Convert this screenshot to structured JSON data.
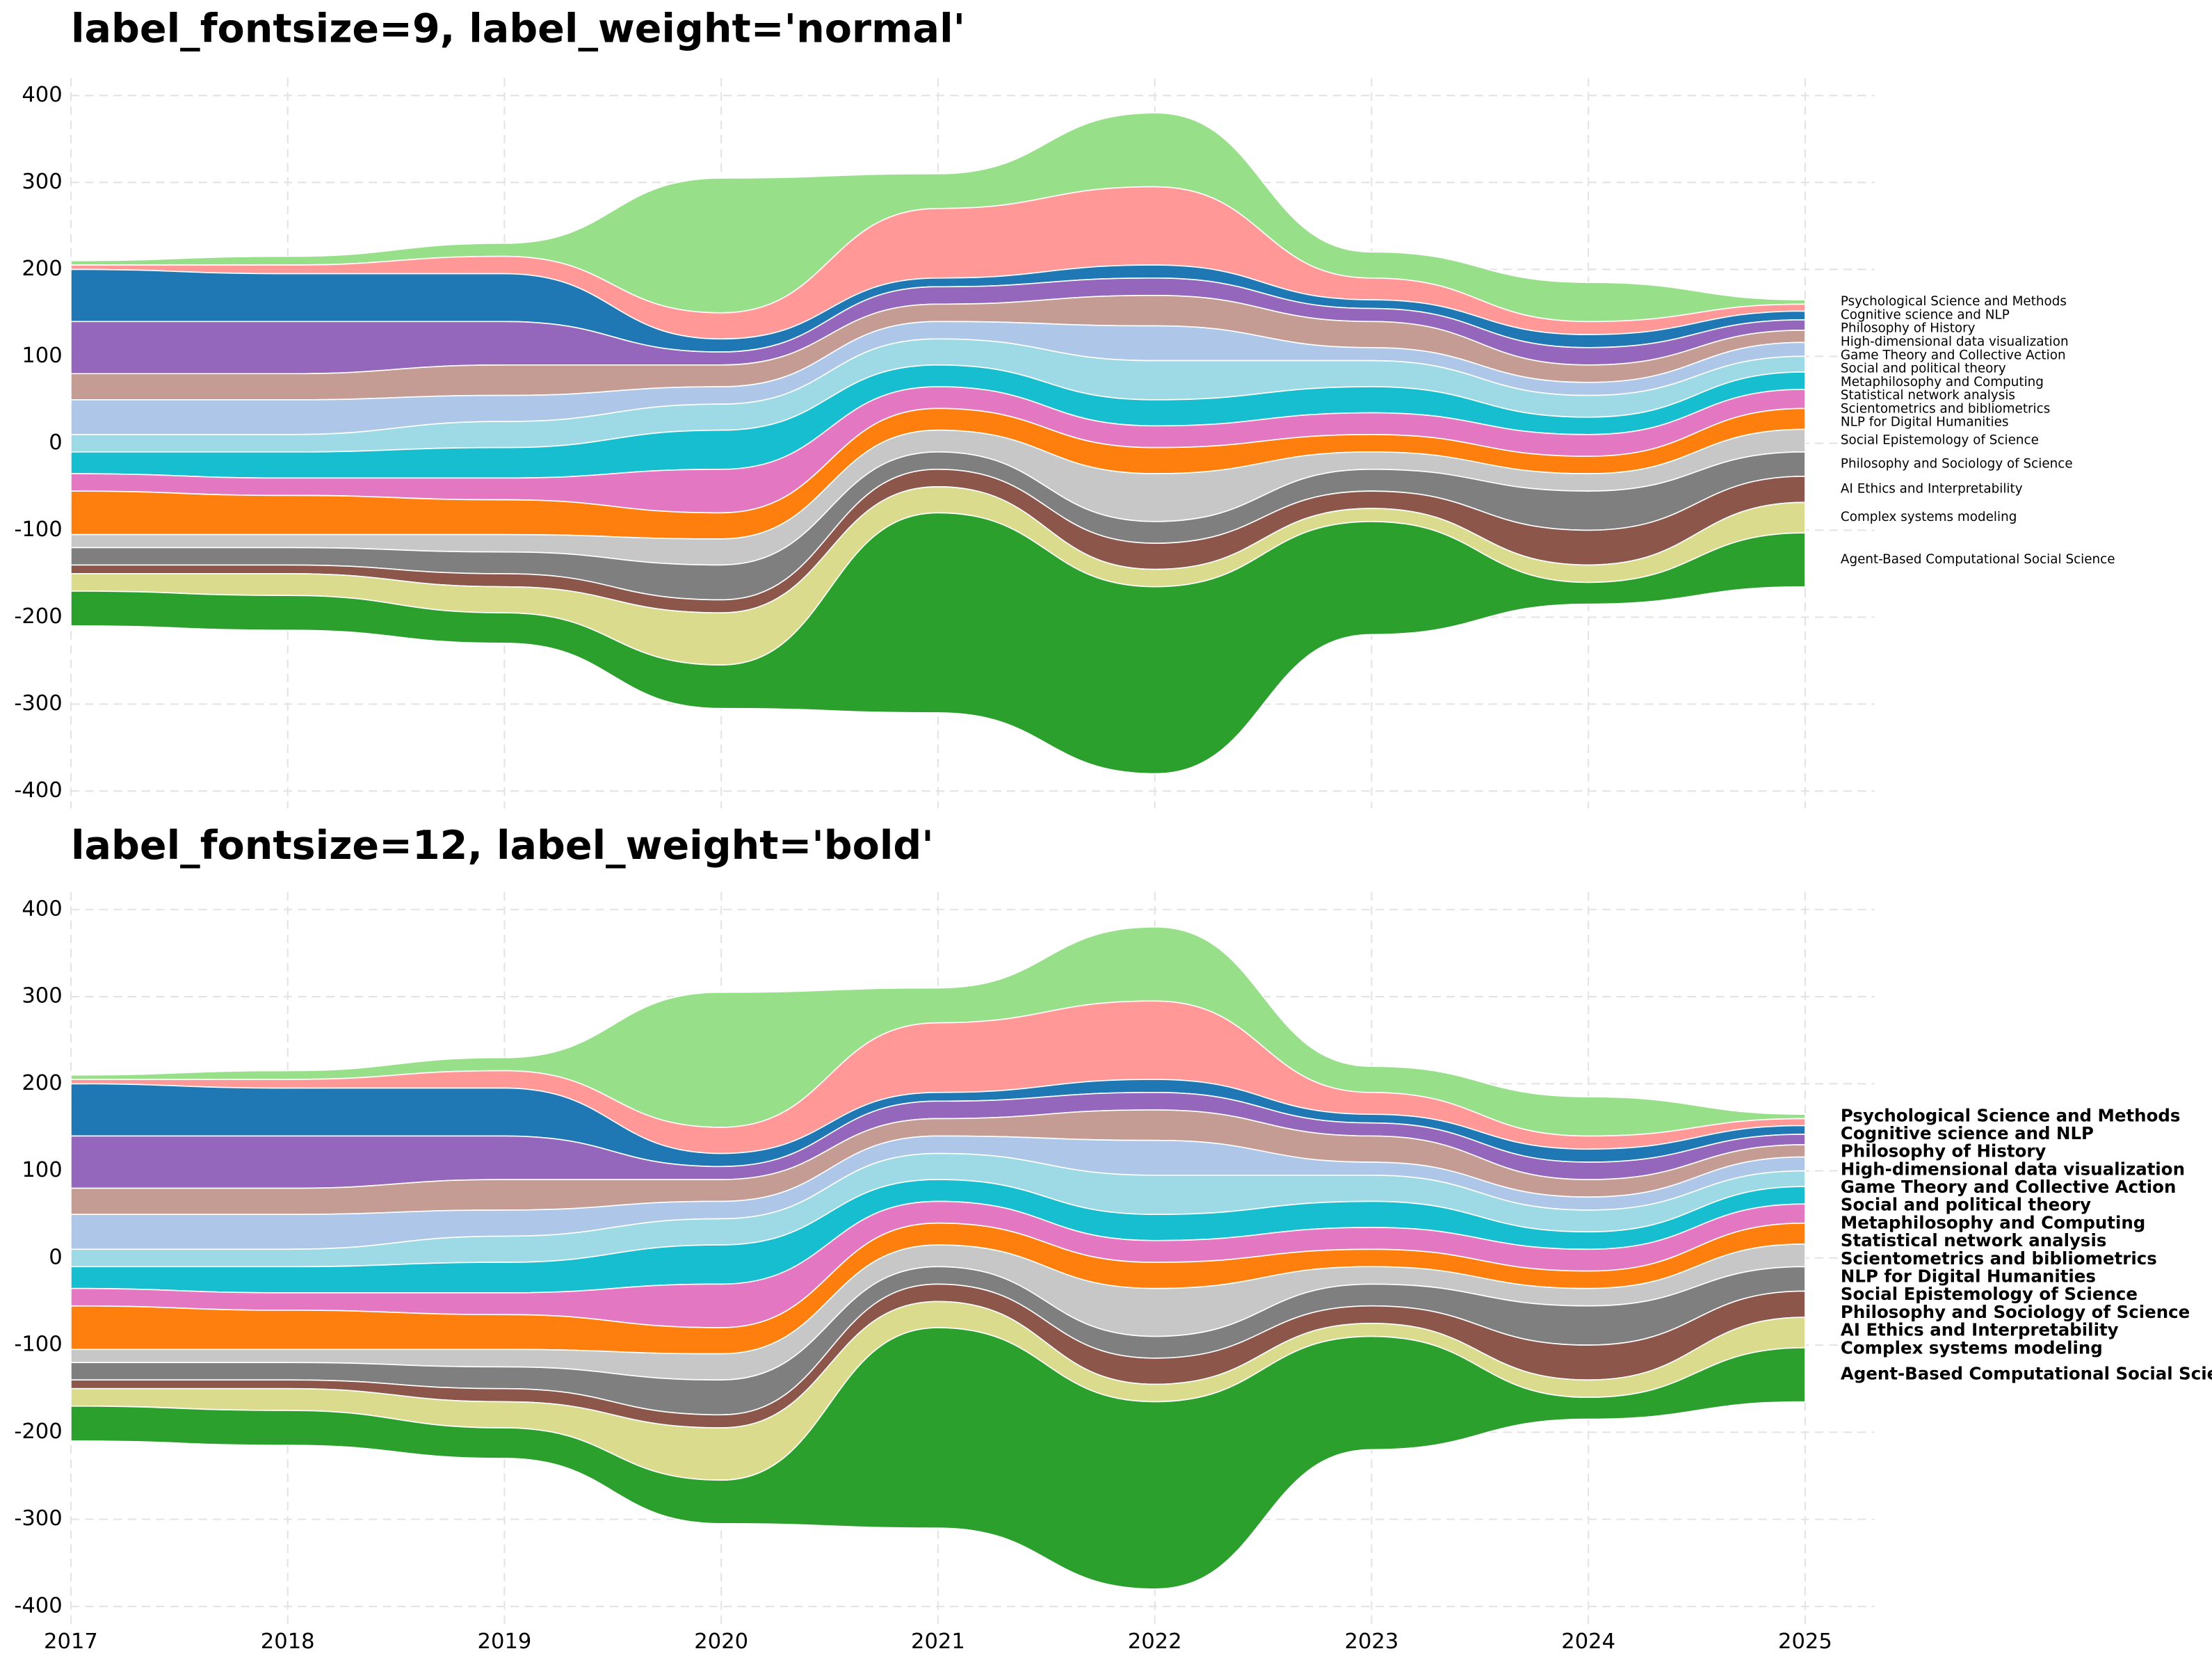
{
  "chart_data": [
    {
      "type": "stream",
      "title": "label_fontsize=9, label_weight='normal'",
      "label_size": 9,
      "label_weight": "normal",
      "x": [
        2017,
        2018,
        2019,
        2020,
        2021,
        2022,
        2023,
        2024,
        2025
      ],
      "xlim": [
        2017,
        2025.32
      ],
      "xticks": [
        2017,
        2018,
        2019,
        2020,
        2021,
        2022,
        2023,
        2024,
        2025
      ],
      "ylim": [
        -420,
        420
      ],
      "yticks": [
        -400,
        -300,
        -200,
        -100,
        0,
        100,
        200,
        300,
        400
      ],
      "grid": true,
      "series": [
        {
          "name": "Psychological Science and Methods",
          "color": "#98df8a",
          "values": [
            5,
            10,
            15,
            155,
            40,
            85,
            30,
            45,
            5
          ]
        },
        {
          "name": "Cognitive science and NLP",
          "color": "#ff9896",
          "values": [
            5,
            10,
            20,
            30,
            80,
            90,
            25,
            15,
            8
          ]
        },
        {
          "name": "Philosophy of History",
          "color": "#1f77b4",
          "values": [
            60,
            55,
            55,
            15,
            10,
            15,
            10,
            15,
            10
          ]
        },
        {
          "name": "High-dimensional data visualization",
          "color": "#9467bd",
          "values": [
            60,
            60,
            50,
            15,
            20,
            20,
            15,
            20,
            12
          ]
        },
        {
          "name": "Game Theory and Collective Action",
          "color": "#c49c94",
          "values": [
            30,
            30,
            35,
            25,
            20,
            35,
            30,
            20,
            14
          ]
        },
        {
          "name": "Social and political theory",
          "color": "#aec7e8",
          "values": [
            40,
            40,
            30,
            20,
            20,
            40,
            15,
            15,
            16
          ]
        },
        {
          "name": "Metaphilosophy and Computing",
          "color": "#9edae5",
          "values": [
            20,
            20,
            30,
            30,
            30,
            45,
            30,
            25,
            18
          ]
        },
        {
          "name": "Statistical network analysis",
          "color": "#17becf",
          "values": [
            25,
            30,
            35,
            45,
            25,
            30,
            30,
            20,
            20
          ]
        },
        {
          "name": "Scientometrics and bibliometrics",
          "color": "#e377c2",
          "values": [
            20,
            20,
            25,
            50,
            25,
            25,
            25,
            25,
            22
          ]
        },
        {
          "name": "NLP for Digital Humanities",
          "color": "#ff7f0e",
          "values": [
            50,
            45,
            40,
            30,
            25,
            30,
            20,
            20,
            24
          ]
        },
        {
          "name": "Social Epistemology of Science",
          "color": "#c7c7c7",
          "values": [
            15,
            15,
            20,
            30,
            25,
            55,
            20,
            20,
            26
          ]
        },
        {
          "name": "Philosophy and Sociology of Science",
          "color": "#7f7f7f",
          "values": [
            20,
            20,
            25,
            40,
            20,
            25,
            25,
            45,
            28
          ]
        },
        {
          "name": "AI Ethics and Interpretability",
          "color": "#8c564b",
          "values": [
            10,
            10,
            15,
            15,
            20,
            30,
            20,
            40,
            30
          ]
        },
        {
          "name": "Complex systems modeling",
          "color": "#dbdb8d",
          "values": [
            20,
            25,
            30,
            60,
            30,
            20,
            15,
            20,
            35
          ]
        },
        {
          "name": "Agent-Based Computational Social Science",
          "color": "#2ca02c",
          "values": [
            40,
            40,
            35,
            50,
            230,
            215,
            130,
            25,
            62
          ]
        }
      ]
    },
    {
      "type": "stream",
      "title": "label_fontsize=12, label_weight='bold'",
      "label_size": 12,
      "label_weight": "bold",
      "x": [
        2017,
        2018,
        2019,
        2020,
        2021,
        2022,
        2023,
        2024,
        2025
      ],
      "xlim": [
        2017,
        2025.32
      ],
      "xticks": [
        2017,
        2018,
        2019,
        2020,
        2021,
        2022,
        2023,
        2024,
        2025
      ],
      "ylim": [
        -420,
        420
      ],
      "yticks": [
        -400,
        -300,
        -200,
        -100,
        0,
        100,
        200,
        300,
        400
      ],
      "grid": true,
      "series": [
        {
          "name": "Psychological Science and Methods",
          "color": "#98df8a",
          "values": [
            5,
            10,
            15,
            155,
            40,
            85,
            30,
            45,
            5
          ]
        },
        {
          "name": "Cognitive science and NLP",
          "color": "#ff9896",
          "values": [
            5,
            10,
            20,
            30,
            80,
            90,
            25,
            15,
            8
          ]
        },
        {
          "name": "Philosophy of History",
          "color": "#1f77b4",
          "values": [
            60,
            55,
            55,
            15,
            10,
            15,
            10,
            15,
            10
          ]
        },
        {
          "name": "High-dimensional data visualization",
          "color": "#9467bd",
          "values": [
            60,
            60,
            50,
            15,
            20,
            20,
            15,
            20,
            12
          ]
        },
        {
          "name": "Game Theory and Collective Action",
          "color": "#c49c94",
          "values": [
            30,
            30,
            35,
            25,
            20,
            35,
            30,
            20,
            14
          ]
        },
        {
          "name": "Social and political theory",
          "color": "#aec7e8",
          "values": [
            40,
            40,
            30,
            20,
            20,
            40,
            15,
            15,
            16
          ]
        },
        {
          "name": "Metaphilosophy and Computing",
          "color": "#9edae5",
          "values": [
            20,
            20,
            30,
            30,
            30,
            45,
            30,
            25,
            18
          ]
        },
        {
          "name": "Statistical network analysis",
          "color": "#17becf",
          "values": [
            25,
            30,
            35,
            45,
            25,
            30,
            30,
            20,
            20
          ]
        },
        {
          "name": "Scientometrics and bibliometrics",
          "color": "#e377c2",
          "values": [
            20,
            20,
            25,
            50,
            25,
            25,
            25,
            25,
            22
          ]
        },
        {
          "name": "NLP for Digital Humanities",
          "color": "#ff7f0e",
          "values": [
            50,
            45,
            40,
            30,
            25,
            30,
            20,
            20,
            24
          ]
        },
        {
          "name": "Social Epistemology of Science",
          "color": "#c7c7c7",
          "values": [
            15,
            15,
            20,
            30,
            25,
            55,
            20,
            20,
            26
          ]
        },
        {
          "name": "Philosophy and Sociology of Science",
          "color": "#7f7f7f",
          "values": [
            20,
            20,
            25,
            40,
            20,
            25,
            25,
            45,
            28
          ]
        },
        {
          "name": "AI Ethics and Interpretability",
          "color": "#8c564b",
          "values": [
            10,
            10,
            15,
            15,
            20,
            30,
            20,
            40,
            30
          ]
        },
        {
          "name": "Complex systems modeling",
          "color": "#dbdb8d",
          "values": [
            20,
            25,
            30,
            60,
            30,
            20,
            15,
            20,
            35
          ]
        },
        {
          "name": "Agent-Based Computational Social Science",
          "color": "#2ca02c",
          "values": [
            40,
            40,
            35,
            50,
            230,
            215,
            130,
            25,
            62
          ]
        }
      ]
    }
  ]
}
